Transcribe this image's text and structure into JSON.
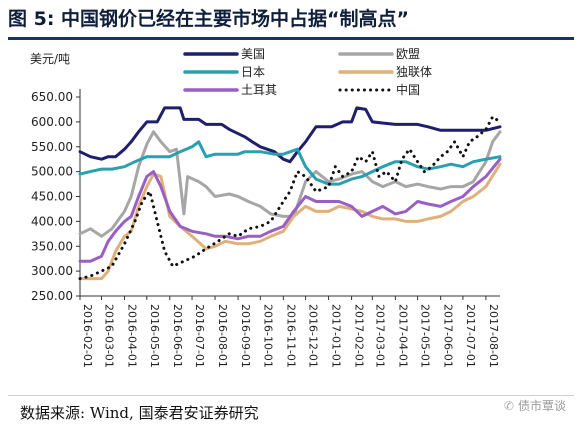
{
  "figure": {
    "title": "图 5: 中国钢价已经在主要市场中占据“制高点”",
    "source": "数据来源: Wind, 国泰君安证券研究",
    "watermark": "债市覃谈"
  },
  "chart_data": {
    "type": "line",
    "title": "",
    "ylabel": "美元/吨",
    "ylim": [
      250,
      650
    ],
    "yticks": [
      "250.00",
      "300.00",
      "350.00",
      "400.00",
      "450.00",
      "500.00",
      "550.00",
      "600.00",
      "650.00"
    ],
    "x_range": [
      "2016-02-01",
      "2017-08-20"
    ],
    "xticks": [
      "2016-02-01",
      "2016-03-01",
      "2016-04-01",
      "2016-05-01",
      "2016-06-01",
      "2016-07-01",
      "2016-08-01",
      "2016-09-01",
      "2016-10-01",
      "2016-11-01",
      "2016-12-01",
      "2017-01-01",
      "2017-02-01",
      "2017-03-01",
      "2017-04-01",
      "2017-05-01",
      "2017-06-01",
      "2017-07-01",
      "2017-08-01"
    ],
    "legend": {
      "placement": "top",
      "columns": 2
    },
    "grid": false,
    "series": [
      {
        "name": "美国",
        "color": "#1f1f6b",
        "style": "solid",
        "points": [
          [
            "2016-02-01",
            540
          ],
          [
            "2016-02-15",
            530
          ],
          [
            "2016-03-01",
            525
          ],
          [
            "2016-03-10",
            530
          ],
          [
            "2016-03-20",
            530
          ],
          [
            "2016-04-01",
            545
          ],
          [
            "2016-04-10",
            560
          ],
          [
            "2016-04-20",
            580
          ],
          [
            "2016-05-01",
            600
          ],
          [
            "2016-05-15",
            600
          ],
          [
            "2016-05-25",
            628
          ],
          [
            "2016-06-15",
            628
          ],
          [
            "2016-06-20",
            605
          ],
          [
            "2016-07-10",
            605
          ],
          [
            "2016-07-20",
            595
          ],
          [
            "2016-08-10",
            595
          ],
          [
            "2016-08-20",
            585
          ],
          [
            "2016-09-10",
            570
          ],
          [
            "2016-09-20",
            560
          ],
          [
            "2016-10-01",
            550
          ],
          [
            "2016-10-20",
            540
          ],
          [
            "2016-11-01",
            525
          ],
          [
            "2016-11-10",
            520
          ],
          [
            "2016-11-20",
            540
          ],
          [
            "2016-12-01",
            560
          ],
          [
            "2016-12-15",
            590
          ],
          [
            "2017-01-05",
            590
          ],
          [
            "2017-01-20",
            600
          ],
          [
            "2017-02-01",
            600
          ],
          [
            "2017-02-08",
            628
          ],
          [
            "2017-02-20",
            625
          ],
          [
            "2017-03-01",
            600
          ],
          [
            "2017-04-01",
            595
          ],
          [
            "2017-05-01",
            595
          ],
          [
            "2017-05-15",
            590
          ],
          [
            "2017-06-01",
            583
          ],
          [
            "2017-07-01",
            583
          ],
          [
            "2017-08-01",
            583
          ],
          [
            "2017-08-20",
            590
          ]
        ]
      },
      {
        "name": "欧盟",
        "color": "#a6a6a6",
        "style": "solid",
        "points": [
          [
            "2016-02-01",
            375
          ],
          [
            "2016-02-15",
            385
          ],
          [
            "2016-03-01",
            370
          ],
          [
            "2016-03-15",
            385
          ],
          [
            "2016-04-01",
            420
          ],
          [
            "2016-04-10",
            450
          ],
          [
            "2016-04-20",
            510
          ],
          [
            "2016-05-01",
            555
          ],
          [
            "2016-05-10",
            580
          ],
          [
            "2016-05-20",
            560
          ],
          [
            "2016-06-01",
            540
          ],
          [
            "2016-06-10",
            545
          ],
          [
            "2016-06-20",
            415
          ],
          [
            "2016-06-25",
            490
          ],
          [
            "2016-07-10",
            480
          ],
          [
            "2016-07-20",
            470
          ],
          [
            "2016-08-01",
            450
          ],
          [
            "2016-08-20",
            455
          ],
          [
            "2016-09-01",
            450
          ],
          [
            "2016-09-15",
            440
          ],
          [
            "2016-10-01",
            430
          ],
          [
            "2016-10-15",
            415
          ],
          [
            "2016-11-01",
            410
          ],
          [
            "2016-11-15",
            410
          ],
          [
            "2016-12-01",
            480
          ],
          [
            "2016-12-15",
            500
          ],
          [
            "2017-01-01",
            480
          ],
          [
            "2017-01-15",
            485
          ],
          [
            "2017-02-01",
            495
          ],
          [
            "2017-02-15",
            500
          ],
          [
            "2017-03-01",
            480
          ],
          [
            "2017-03-15",
            470
          ],
          [
            "2017-04-01",
            480
          ],
          [
            "2017-04-15",
            470
          ],
          [
            "2017-05-01",
            475
          ],
          [
            "2017-05-15",
            470
          ],
          [
            "2017-06-01",
            465
          ],
          [
            "2017-06-15",
            470
          ],
          [
            "2017-07-01",
            470
          ],
          [
            "2017-07-15",
            480
          ],
          [
            "2017-08-01",
            520
          ],
          [
            "2017-08-10",
            560
          ],
          [
            "2017-08-20",
            580
          ]
        ]
      },
      {
        "name": "日本",
        "color": "#2a9fb0",
        "style": "solid",
        "points": [
          [
            "2016-02-01",
            495
          ],
          [
            "2016-02-15",
            500
          ],
          [
            "2016-03-01",
            505
          ],
          [
            "2016-03-15",
            505
          ],
          [
            "2016-04-01",
            510
          ],
          [
            "2016-04-15",
            520
          ],
          [
            "2016-05-01",
            530
          ],
          [
            "2016-05-15",
            530
          ],
          [
            "2016-06-01",
            530
          ],
          [
            "2016-06-15",
            540
          ],
          [
            "2016-07-01",
            550
          ],
          [
            "2016-07-10",
            560
          ],
          [
            "2016-07-20",
            530
          ],
          [
            "2016-08-01",
            535
          ],
          [
            "2016-09-01",
            535
          ],
          [
            "2016-09-10",
            540
          ],
          [
            "2016-10-01",
            540
          ],
          [
            "2016-10-20",
            535
          ],
          [
            "2016-11-01",
            535
          ],
          [
            "2016-11-20",
            545
          ],
          [
            "2016-12-01",
            510
          ],
          [
            "2016-12-15",
            485
          ],
          [
            "2017-01-01",
            475
          ],
          [
            "2017-01-15",
            475
          ],
          [
            "2017-02-01",
            485
          ],
          [
            "2017-02-15",
            490
          ],
          [
            "2017-03-01",
            500
          ],
          [
            "2017-03-15",
            510
          ],
          [
            "2017-04-01",
            520
          ],
          [
            "2017-04-15",
            520
          ],
          [
            "2017-05-01",
            510
          ],
          [
            "2017-05-15",
            505
          ],
          [
            "2017-06-01",
            510
          ],
          [
            "2017-06-15",
            515
          ],
          [
            "2017-07-01",
            510
          ],
          [
            "2017-07-15",
            520
          ],
          [
            "2017-08-01",
            525
          ],
          [
            "2017-08-20",
            530
          ]
        ]
      },
      {
        "name": "独联体",
        "color": "#e0b07a",
        "style": "solid",
        "points": [
          [
            "2016-02-01",
            285
          ],
          [
            "2016-02-15",
            285
          ],
          [
            "2016-03-01",
            285
          ],
          [
            "2016-03-10",
            300
          ],
          [
            "2016-03-20",
            340
          ],
          [
            "2016-04-01",
            370
          ],
          [
            "2016-04-10",
            380
          ],
          [
            "2016-04-20",
            430
          ],
          [
            "2016-05-01",
            470
          ],
          [
            "2016-05-10",
            495
          ],
          [
            "2016-05-20",
            490
          ],
          [
            "2016-06-01",
            410
          ],
          [
            "2016-06-15",
            390
          ],
          [
            "2016-07-01",
            370
          ],
          [
            "2016-07-20",
            345
          ],
          [
            "2016-08-01",
            350
          ],
          [
            "2016-08-15",
            360
          ],
          [
            "2016-09-01",
            355
          ],
          [
            "2016-09-15",
            355
          ],
          [
            "2016-10-01",
            360
          ],
          [
            "2016-10-15",
            370
          ],
          [
            "2016-11-01",
            380
          ],
          [
            "2016-11-15",
            410
          ],
          [
            "2016-12-01",
            430
          ],
          [
            "2016-12-15",
            420
          ],
          [
            "2017-01-01",
            420
          ],
          [
            "2017-01-15",
            430
          ],
          [
            "2017-02-01",
            425
          ],
          [
            "2017-02-15",
            420
          ],
          [
            "2017-03-01",
            410
          ],
          [
            "2017-03-15",
            405
          ],
          [
            "2017-04-01",
            405
          ],
          [
            "2017-04-15",
            400
          ],
          [
            "2017-05-01",
            400
          ],
          [
            "2017-05-15",
            405
          ],
          [
            "2017-06-01",
            410
          ],
          [
            "2017-06-15",
            420
          ],
          [
            "2017-07-01",
            440
          ],
          [
            "2017-07-15",
            450
          ],
          [
            "2017-08-01",
            470
          ],
          [
            "2017-08-20",
            515
          ]
        ]
      },
      {
        "name": "土耳其",
        "color": "#9a5fc4",
        "style": "solid",
        "points": [
          [
            "2016-02-01",
            320
          ],
          [
            "2016-02-15",
            320
          ],
          [
            "2016-03-01",
            330
          ],
          [
            "2016-03-10",
            360
          ],
          [
            "2016-03-20",
            380
          ],
          [
            "2016-04-01",
            400
          ],
          [
            "2016-04-10",
            410
          ],
          [
            "2016-04-20",
            450
          ],
          [
            "2016-05-01",
            490
          ],
          [
            "2016-05-10",
            500
          ],
          [
            "2016-05-20",
            470
          ],
          [
            "2016-06-01",
            420
          ],
          [
            "2016-06-15",
            390
          ],
          [
            "2016-07-01",
            380
          ],
          [
            "2016-07-20",
            375
          ],
          [
            "2016-08-01",
            370
          ],
          [
            "2016-08-15",
            370
          ],
          [
            "2016-09-01",
            365
          ],
          [
            "2016-09-15",
            370
          ],
          [
            "2016-10-01",
            370
          ],
          [
            "2016-10-15",
            380
          ],
          [
            "2016-11-01",
            390
          ],
          [
            "2016-11-15",
            420
          ],
          [
            "2016-12-01",
            450
          ],
          [
            "2016-12-15",
            440
          ],
          [
            "2017-01-01",
            440
          ],
          [
            "2017-01-15",
            440
          ],
          [
            "2017-02-01",
            430
          ],
          [
            "2017-02-15",
            410
          ],
          [
            "2017-03-01",
            420
          ],
          [
            "2017-03-15",
            430
          ],
          [
            "2017-04-01",
            415
          ],
          [
            "2017-04-15",
            420
          ],
          [
            "2017-05-01",
            440
          ],
          [
            "2017-05-15",
            435
          ],
          [
            "2017-06-01",
            430
          ],
          [
            "2017-06-15",
            440
          ],
          [
            "2017-07-01",
            450
          ],
          [
            "2017-07-15",
            470
          ],
          [
            "2017-08-01",
            490
          ],
          [
            "2017-08-20",
            525
          ]
        ]
      },
      {
        "name": "中国",
        "color": "#111111",
        "style": "dotted",
        "points": [
          [
            "2016-02-01",
            285
          ],
          [
            "2016-02-15",
            290
          ],
          [
            "2016-03-01",
            300
          ],
          [
            "2016-03-15",
            310
          ],
          [
            "2016-04-01",
            355
          ],
          [
            "2016-04-15",
            400
          ],
          [
            "2016-04-25",
            440
          ],
          [
            "2016-05-05",
            460
          ],
          [
            "2016-05-15",
            400
          ],
          [
            "2016-05-25",
            340
          ],
          [
            "2016-06-05",
            310
          ],
          [
            "2016-06-20",
            320
          ],
          [
            "2016-07-05",
            330
          ],
          [
            "2016-07-20",
            345
          ],
          [
            "2016-08-05",
            360
          ],
          [
            "2016-08-20",
            375
          ],
          [
            "2016-09-01",
            370
          ],
          [
            "2016-09-15",
            385
          ],
          [
            "2016-10-01",
            390
          ],
          [
            "2016-10-15",
            400
          ],
          [
            "2016-11-01",
            440
          ],
          [
            "2016-11-10",
            460
          ],
          [
            "2016-11-20",
            500
          ],
          [
            "2016-12-01",
            490
          ],
          [
            "2016-12-15",
            460
          ],
          [
            "2017-01-01",
            470
          ],
          [
            "2017-01-10",
            510
          ],
          [
            "2017-01-20",
            490
          ],
          [
            "2017-02-01",
            500
          ],
          [
            "2017-02-10",
            530
          ],
          [
            "2017-02-20",
            520
          ],
          [
            "2017-03-01",
            540
          ],
          [
            "2017-03-10",
            490
          ],
          [
            "2017-03-20",
            500
          ],
          [
            "2017-04-01",
            480
          ],
          [
            "2017-04-10",
            525
          ],
          [
            "2017-04-20",
            545
          ],
          [
            "2017-05-01",
            520
          ],
          [
            "2017-05-10",
            500
          ],
          [
            "2017-05-20",
            510
          ],
          [
            "2017-06-01",
            530
          ],
          [
            "2017-06-10",
            540
          ],
          [
            "2017-06-20",
            560
          ],
          [
            "2017-07-01",
            530
          ],
          [
            "2017-07-10",
            560
          ],
          [
            "2017-07-20",
            570
          ],
          [
            "2017-08-01",
            585
          ],
          [
            "2017-08-10",
            610
          ],
          [
            "2017-08-20",
            600
          ]
        ]
      }
    ]
  }
}
